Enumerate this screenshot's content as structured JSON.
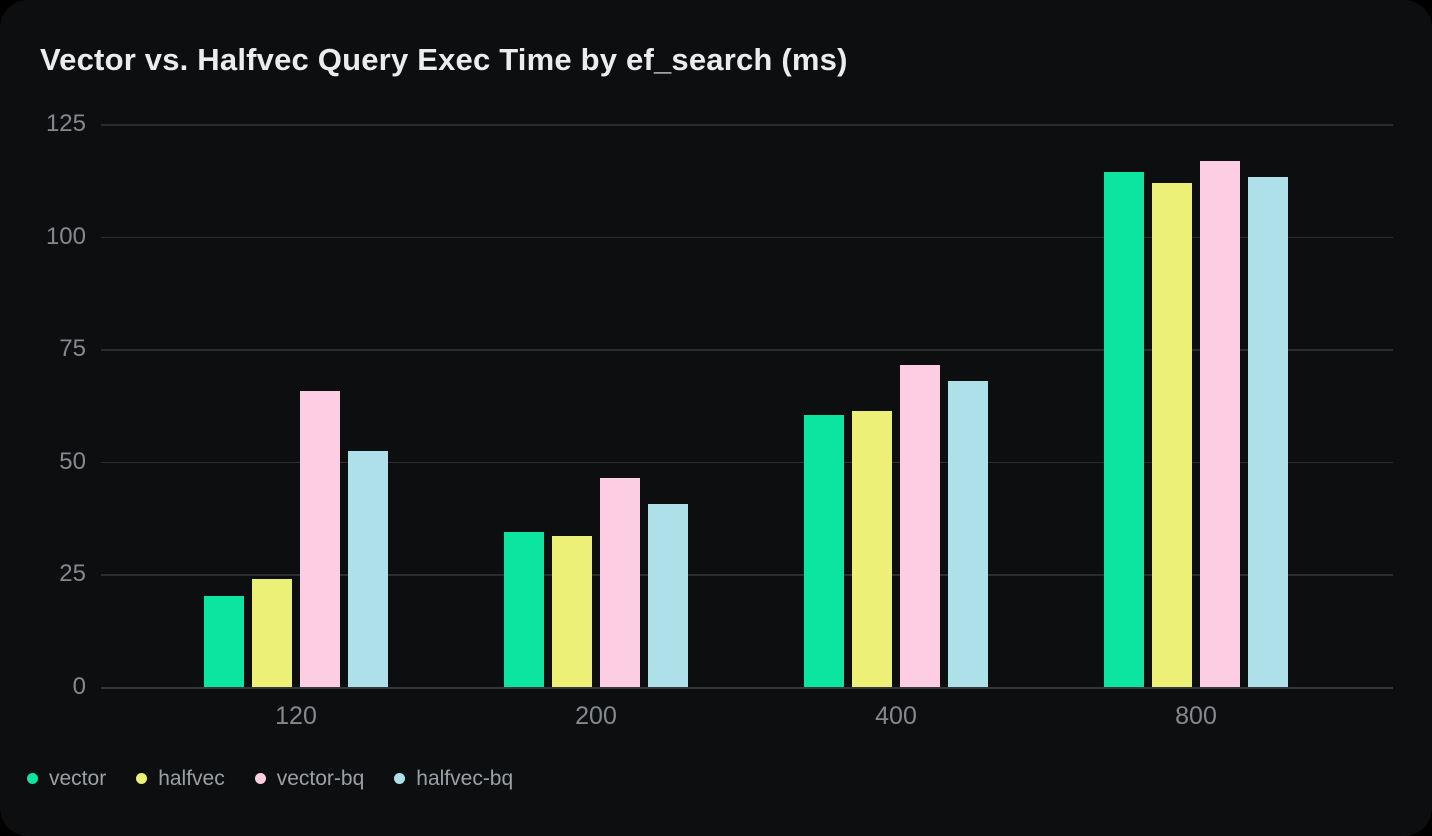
{
  "colors": {
    "page_background": "#000000",
    "card_background": "#0d0e0f",
    "gridline": "#2a2c2e",
    "axis_line": "#35383b",
    "title_text": "#ebecee",
    "tick_text": "#85898e",
    "legend_text": "#9aa0a6"
  },
  "chart_data": {
    "type": "bar",
    "title": "Vector vs. Halfvec Query Exec Time by ef_search (ms)",
    "categories": [
      "120",
      "200",
      "400",
      "800"
    ],
    "series": [
      {
        "name": "vector",
        "color": "#0ce59f",
        "values": [
          20.2,
          34.4,
          60.3,
          114.4
        ]
      },
      {
        "name": "halfvec",
        "color": "#ecf076",
        "values": [
          23.9,
          33.5,
          61.3,
          111.9
        ]
      },
      {
        "name": "vector-bq",
        "color": "#fdcde3",
        "values": [
          65.8,
          46.5,
          71.5,
          116.7
        ]
      },
      {
        "name": "halfvec-bq",
        "color": "#aee0ea",
        "values": [
          52.5,
          40.7,
          68.0,
          113.3
        ]
      }
    ],
    "xlabel": "",
    "ylabel": "",
    "ylim": [
      0,
      125
    ],
    "yticks": [
      0,
      25,
      50,
      75,
      100,
      125
    ],
    "grid": true,
    "legend": [
      "vector",
      "halfvec",
      "vector-bq",
      "halfvec-bq"
    ],
    "legend_position": "bottom-left"
  }
}
